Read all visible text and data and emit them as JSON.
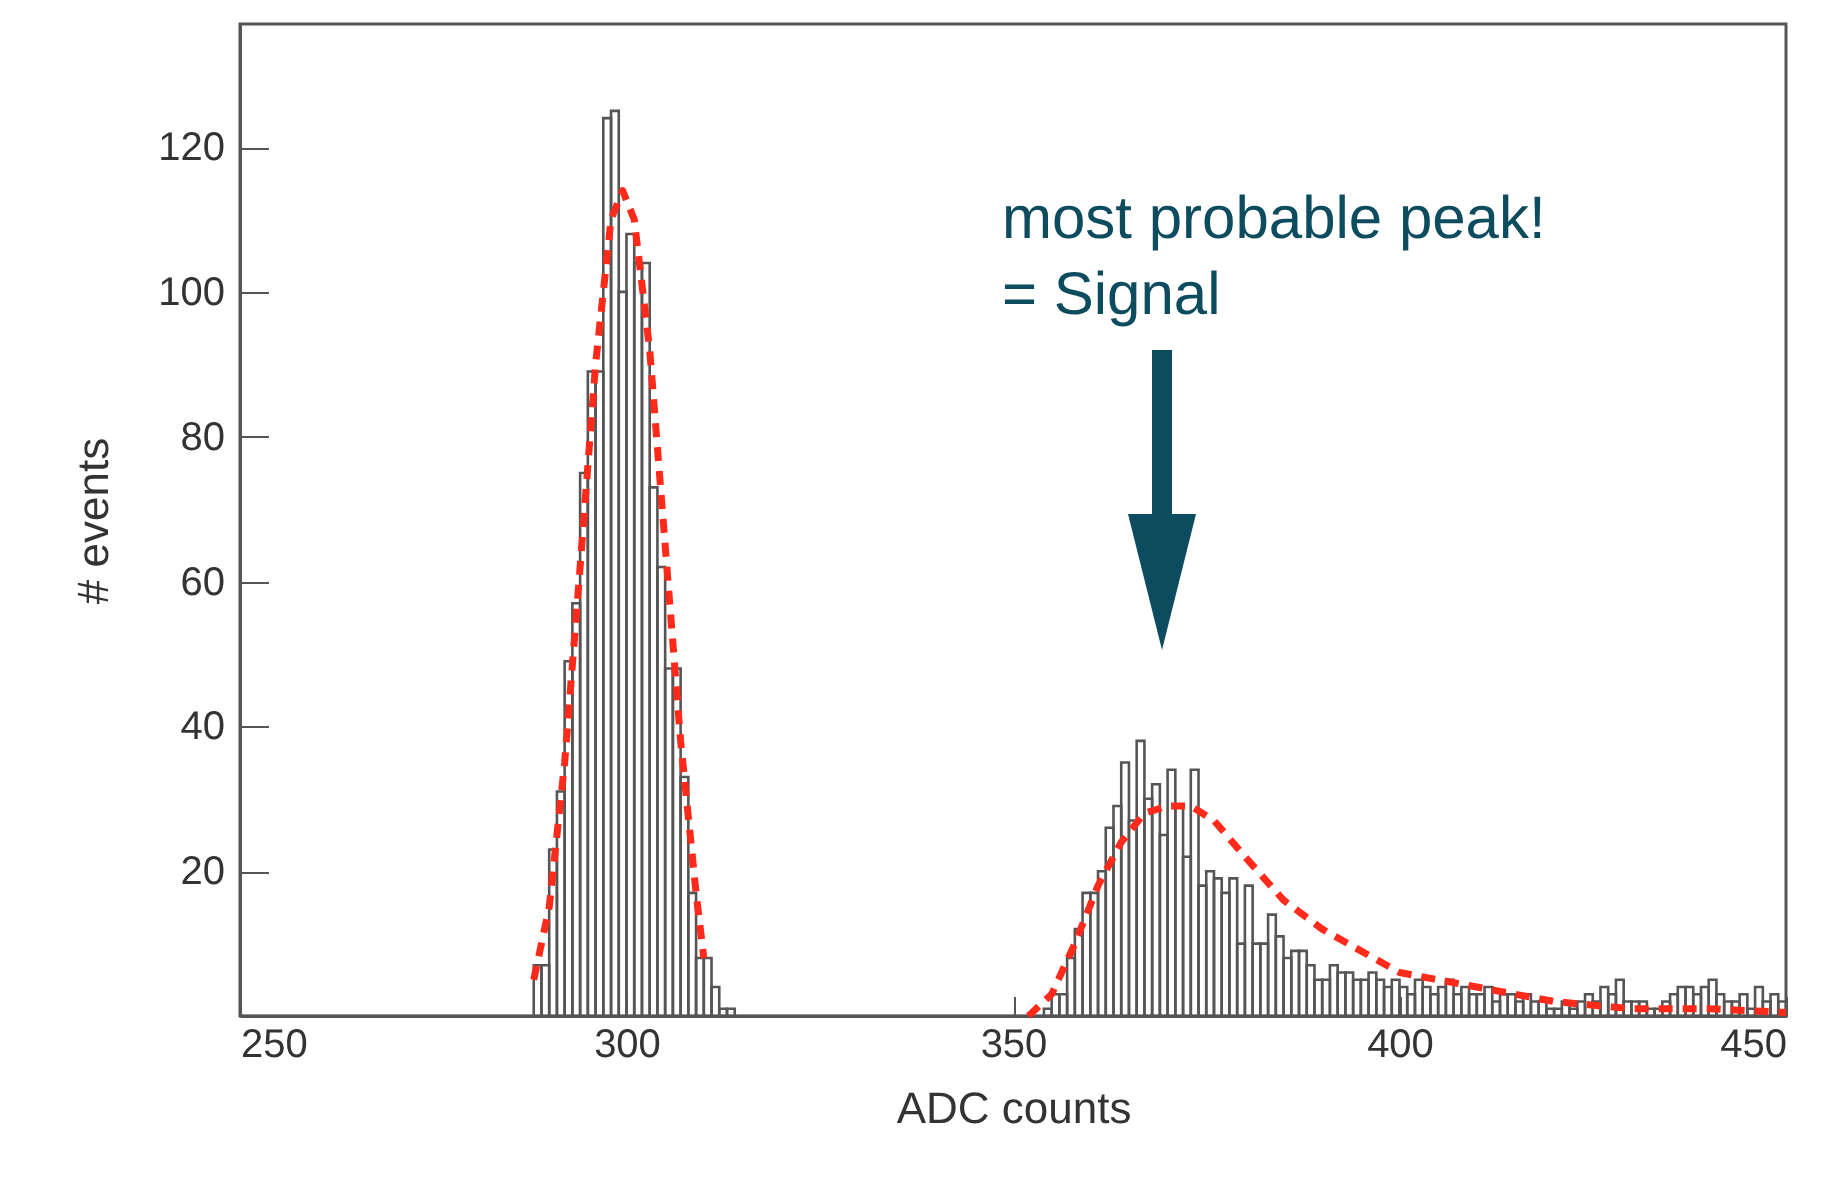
{
  "chart_data": {
    "type": "histogram",
    "xlabel": "ADC counts",
    "ylabel": "# events",
    "xlim": [
      250,
      450
    ],
    "xticks": [
      250,
      300,
      350,
      400,
      450
    ],
    "ylim": [
      0,
      137
    ],
    "yticks": [
      20,
      40,
      60,
      80,
      100,
      120
    ],
    "grid": false,
    "bins": [
      250,
      288,
      289,
      290,
      291,
      292,
      293,
      294,
      295,
      296,
      297,
      298,
      299,
      300,
      301,
      302,
      303,
      304,
      305,
      306,
      307,
      308,
      309,
      310,
      311,
      312,
      313,
      314,
      352,
      353,
      354,
      355,
      356,
      357,
      358,
      359,
      360,
      361,
      362,
      363,
      364,
      365,
      366,
      367,
      368,
      369,
      370,
      371,
      372,
      373,
      374,
      375,
      376,
      377,
      378,
      379,
      380,
      381,
      382,
      383,
      384,
      385,
      386,
      387,
      388,
      389,
      390,
      391,
      392,
      393,
      394,
      395,
      396,
      397,
      398,
      399,
      400,
      401,
      402,
      403,
      404,
      405,
      406,
      407,
      408,
      409,
      410,
      411,
      412,
      413,
      414,
      415,
      416,
      417,
      418,
      419,
      420,
      421,
      422,
      423,
      424,
      425,
      426,
      427,
      428,
      429,
      430,
      431,
      432,
      433,
      434,
      435,
      436,
      437,
      438,
      439,
      440,
      441,
      442,
      443,
      444,
      445,
      446,
      447,
      448,
      449,
      450
    ],
    "series": [
      {
        "color": "#555555",
        "values": [
          0,
          7,
          7,
          23,
          31,
          49,
          57,
          75,
          89,
          89,
          124,
          125,
          100,
          108,
          104,
          104,
          73,
          62,
          48,
          48,
          33,
          17,
          8,
          8,
          4,
          1,
          1,
          0,
          0,
          0,
          1,
          3,
          3,
          8,
          12,
          17,
          17,
          20,
          26,
          29,
          35,
          27,
          38,
          30,
          32,
          25,
          34,
          29,
          22,
          34,
          18,
          20,
          19,
          17,
          19,
          10,
          18,
          10,
          10,
          14,
          11,
          8,
          9,
          9,
          7,
          5,
          5,
          7,
          6,
          6,
          5,
          5,
          6,
          5,
          4,
          5,
          4,
          3,
          5,
          4,
          3,
          4,
          5,
          3,
          4,
          3,
          3,
          4,
          2,
          3,
          3,
          2,
          3,
          2,
          2,
          1,
          1,
          2,
          1,
          2,
          3,
          2,
          4,
          3,
          5,
          2,
          2,
          2,
          1,
          1,
          2,
          3,
          4,
          4,
          3,
          4,
          5,
          3,
          2,
          2,
          3,
          1,
          4,
          2,
          3,
          2
        ]
      },
      {
        "type": "line",
        "color": "#ff2a1a",
        "line_style": "dashed",
        "x": [
          288,
          290,
          292,
          294,
          296,
          298,
          299.5,
          301,
          303,
          305,
          307,
          309,
          310
        ],
        "values": [
          5,
          15,
          35,
          62,
          90,
          110,
          114,
          110,
          92,
          65,
          38,
          17,
          8
        ]
      },
      {
        "type": "line",
        "color": "#ff2a1a",
        "line_style": "dashed",
        "x": [
          352,
          355,
          358,
          361,
          364,
          367,
          370,
          373,
          376,
          380,
          385,
          390,
          395,
          400,
          410,
          420,
          430,
          440,
          450
        ],
        "values": [
          0,
          3,
          10,
          18,
          24,
          28,
          29,
          29,
          27,
          22,
          16,
          12,
          9,
          6,
          4,
          2,
          1,
          1,
          0.5
        ]
      }
    ],
    "annotations": [
      "most probable peak!\n= Signal"
    ]
  }
}
